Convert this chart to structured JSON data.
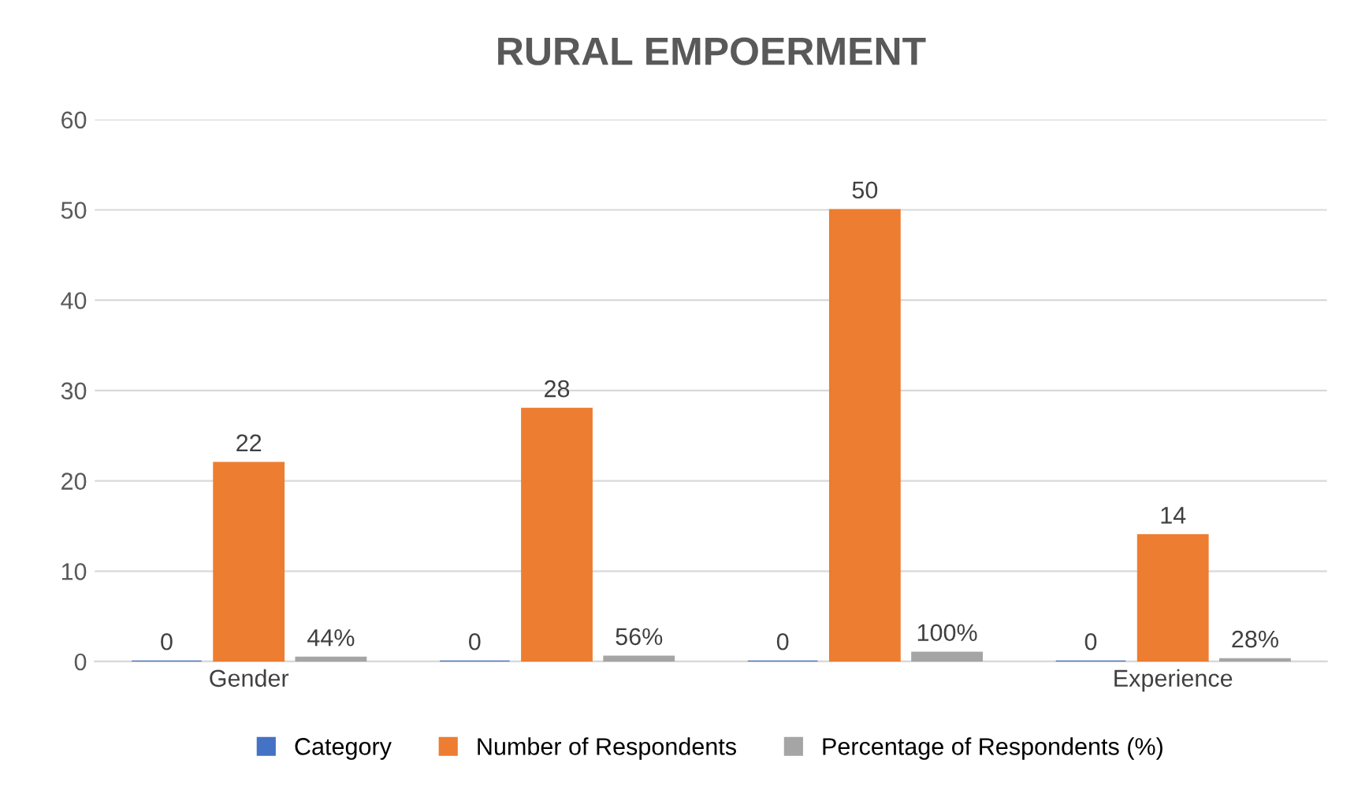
{
  "chart_data": {
    "type": "bar",
    "title": "RURAL EMPOERMENT",
    "categories": [
      "Gender",
      null,
      null,
      "Experience"
    ],
    "series": [
      {
        "name": "Category",
        "color": "#4472c4",
        "values": [
          0,
          0,
          0,
          0
        ],
        "value_labels": [
          "0",
          "0",
          "0",
          "0"
        ]
      },
      {
        "name": "Number of Respondents",
        "color": "#ed7d31",
        "values": [
          22,
          28,
          50,
          14
        ],
        "value_labels": [
          "22",
          "28",
          "50",
          "14"
        ]
      },
      {
        "name": "Percentage of Respondents (%)",
        "color": "#a5a5a5",
        "values": [
          0.44,
          0.56,
          1,
          0.28
        ],
        "value_labels": [
          "44%",
          "56%",
          "100%",
          "28%"
        ]
      }
    ],
    "ylim": [
      0,
      60
    ],
    "yticks": [
      0,
      10,
      20,
      30,
      40,
      50,
      60
    ],
    "grid": "y",
    "legend": "bottom"
  }
}
